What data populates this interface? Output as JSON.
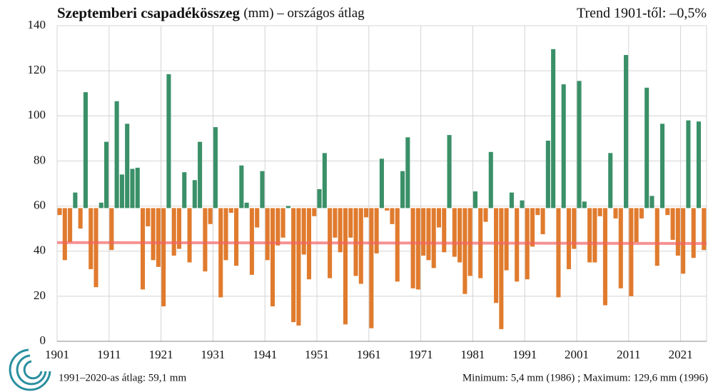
{
  "chart_data": {
    "type": "bar",
    "title": "Szeptemberi csapadékösszeg",
    "subtitle": "(mm) – országos átlag",
    "trend_text": "Trend 1901-től: –0,5%",
    "footer_left": "1991–2020-as átlag:  59,1 mm",
    "footer_right": "Minimum:  5,4 mm (1986) ; Maximum:  129,6 mm (1996)",
    "baseline": 59.1,
    "colors": {
      "above": "#3a9068",
      "below": "#e07b2e"
    },
    "x": [
      1901,
      1902,
      1903,
      1904,
      1905,
      1906,
      1907,
      1908,
      1909,
      1910,
      1911,
      1912,
      1913,
      1914,
      1915,
      1916,
      1917,
      1918,
      1919,
      1920,
      1921,
      1922,
      1923,
      1924,
      1925,
      1926,
      1927,
      1928,
      1929,
      1930,
      1931,
      1932,
      1933,
      1934,
      1935,
      1936,
      1937,
      1938,
      1939,
      1940,
      1941,
      1942,
      1943,
      1944,
      1945,
      1946,
      1947,
      1948,
      1949,
      1950,
      1951,
      1952,
      1953,
      1954,
      1955,
      1956,
      1957,
      1958,
      1959,
      1960,
      1961,
      1962,
      1963,
      1964,
      1965,
      1966,
      1967,
      1968,
      1969,
      1970,
      1971,
      1972,
      1973,
      1974,
      1975,
      1976,
      1977,
      1978,
      1979,
      1980,
      1981,
      1982,
      1983,
      1984,
      1985,
      1986,
      1987,
      1988,
      1989,
      1990,
      1991,
      1992,
      1993,
      1994,
      1995,
      1996,
      1997,
      1998,
      1999,
      2000,
      2001,
      2002,
      2003,
      2004,
      2005,
      2006,
      2007,
      2008,
      2009,
      2010,
      2011,
      2012,
      2013,
      2014,
      2015,
      2016,
      2017,
      2018,
      2019,
      2020,
      2021,
      2022,
      2023,
      2024,
      2025
    ],
    "values": [
      56,
      36,
      44,
      66,
      50,
      110.5,
      32,
      24,
      61.5,
      88.5,
      40.5,
      106.5,
      74,
      96.5,
      76.5,
      77,
      23,
      51,
      36,
      33,
      15.5,
      118.5,
      38,
      41,
      75,
      35,
      71.5,
      88.5,
      31,
      52,
      95,
      19.5,
      36,
      57,
      33.5,
      78,
      61.5,
      29.5,
      50.5,
      75.5,
      36,
      15.5,
      42.5,
      46,
      60,
      8.5,
      7,
      38.5,
      27.5,
      55.5,
      67.5,
      83.5,
      28,
      46,
      39.5,
      7.5,
      46,
      29,
      25.5,
      55,
      5.8,
      39,
      81,
      58,
      52,
      26.5,
      75.5,
      90.5,
      23.5,
      23,
      38,
      36,
      32.5,
      50.5,
      39.5,
      91.5,
      37.5,
      35,
      21,
      29,
      66.5,
      28,
      53,
      84,
      17,
      5.4,
      31.5,
      66,
      26.5,
      62.5,
      27.5,
      42,
      56,
      47.5,
      89,
      129.6,
      19.5,
      114,
      32,
      41,
      115.5,
      62,
      35,
      35,
      55.5,
      16,
      83.5,
      54.5,
      23.5,
      127,
      20,
      44,
      54.5,
      112.5,
      64.5,
      33.5,
      96.5,
      56,
      45,
      38,
      30,
      98,
      37,
      97.5,
      40.5
    ],
    "trend_line": {
      "x": [
        1901,
        2025
      ],
      "values": [
        43.8,
        43.4
      ],
      "color": "#f26464"
    },
    "xlim": [
      1901,
      2026
    ],
    "xticks": [
      1901,
      1911,
      1921,
      1931,
      1941,
      1951,
      1961,
      1971,
      1981,
      1991,
      2001,
      2011,
      2021
    ],
    "ylim": [
      0,
      140
    ],
    "yticks": [
      0,
      20,
      40,
      60,
      80,
      100,
      120,
      140
    ],
    "grid": true
  }
}
